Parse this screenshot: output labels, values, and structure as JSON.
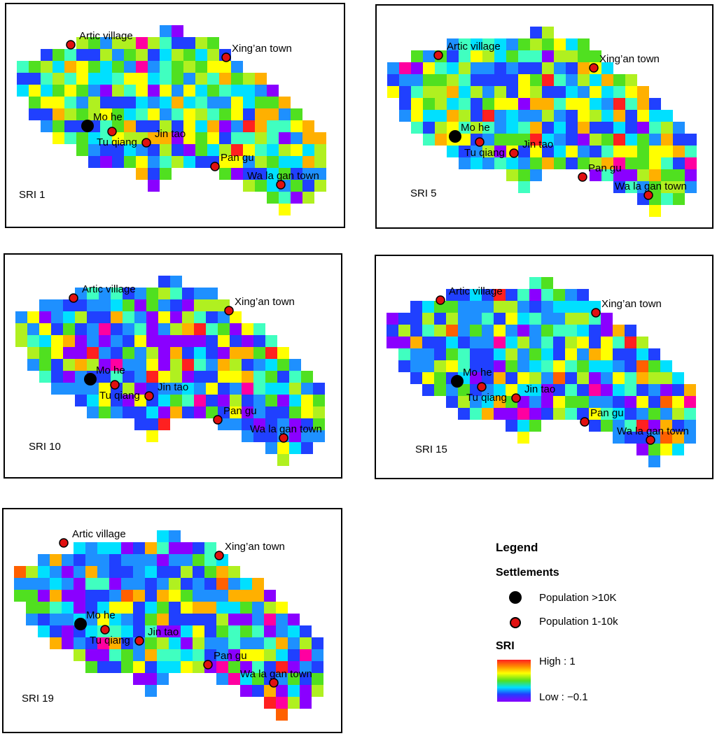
{
  "panels": [
    {
      "id": "sri1",
      "label": "SRI 1",
      "palette": 1
    },
    {
      "id": "sri5",
      "label": "SRI 5",
      "palette": 5
    },
    {
      "id": "sri10",
      "label": "SRI 10",
      "palette": 10
    },
    {
      "id": "sri15",
      "label": "SRI 15",
      "palette": 15
    },
    {
      "id": "sri19",
      "label": "SRI 19",
      "palette": 19
    }
  ],
  "settlements": [
    {
      "name": "Artic village",
      "type": "small"
    },
    {
      "name": "Xing’an town",
      "type": "small"
    },
    {
      "name": "Mo he",
      "type": "large"
    },
    {
      "name": "Tu qiang",
      "type": "small"
    },
    {
      "name": "Jin tao",
      "type": "small"
    },
    {
      "name": "Pan gu",
      "type": "small"
    },
    {
      "name": "Wa la gan town",
      "type": "small"
    }
  ],
  "legend": {
    "title": "Legend",
    "settlements_heading": "Settlements",
    "large_label": "Population >10K",
    "small_label": "Population 1-10k",
    "sri_heading": "SRI",
    "high_label": "High : 1",
    "low_label": "Low : −0.1"
  },
  "colors": {
    "small_dot": "#e01010",
    "large_dot": "#000000",
    "cells": [
      "#8a00ff",
      "#2040ff",
      "#1e90ff",
      "#00e0ff",
      "#40ffc0",
      "#50e020",
      "#b0f020",
      "#ffff00",
      "#ffb000",
      "#ff6000",
      "#ff2020",
      "#ff00a0"
    ]
  }
}
